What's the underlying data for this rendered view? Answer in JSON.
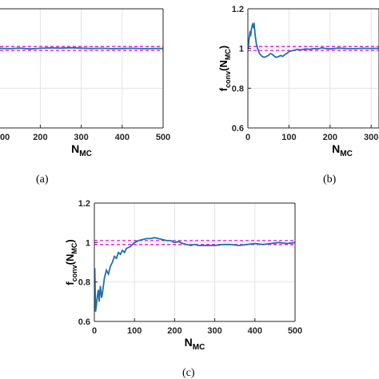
{
  "colors": {
    "series": "#1f6fb2",
    "bound": "#e10de1",
    "grid": "#e3e3e3",
    "axis": "#262626"
  },
  "chart_data": [
    {
      "panel": "(a)",
      "type": "line",
      "xlabel_main": "N",
      "xlabel_sub": "MC",
      "xlim": [
        0,
        500
      ],
      "ylim": [
        0.6,
        1.2
      ],
      "xticks": [
        0,
        200,
        300,
        400,
        500
      ],
      "xtick_labels": [
        "00",
        "200",
        "300",
        "400",
        "500"
      ],
      "yticks": [],
      "grid": true,
      "bounds": [
        0.99,
        1.01
      ],
      "series": [
        {
          "x": [
            0,
            25,
            50,
            75,
            100,
            125,
            150,
            175,
            200,
            225,
            250,
            275,
            300,
            325,
            350,
            375,
            400,
            425,
            450,
            475,
            500
          ],
          "values": [
            1.0,
            0.998,
            1.003,
            0.997,
            1.001,
            0.999,
            1.002,
            0.998,
            1.001,
            1.003,
            1.002,
            1.004,
            1.002,
            1.0,
            1.001,
            0.999,
            1.0,
            1.001,
            0.999,
            1.0,
            1.0
          ]
        }
      ]
    },
    {
      "panel": "(b)",
      "type": "line",
      "xlabel_main": "N",
      "xlabel_sub": "MC",
      "ylabel_main": "f",
      "ylabel_sub": "conv",
      "ylabel_arg_main": "N",
      "ylabel_arg_sub": "MC",
      "xlim": [
        0,
        500
      ],
      "ylim": [
        0.6,
        1.2
      ],
      "xticks": [
        0,
        100,
        200,
        300
      ],
      "xtick_labels": [
        "0",
        "100",
        "200",
        "300"
      ],
      "yticks": [
        0.6,
        0.8,
        1,
        1.2
      ],
      "ytick_labels": [
        "0.6",
        "0.8",
        "1",
        "1.2"
      ],
      "grid": true,
      "bounds": [
        0.99,
        1.01
      ],
      "series": [
        {
          "x": [
            1,
            3,
            5,
            7,
            9,
            11,
            13,
            15,
            18,
            21,
            24,
            27,
            30,
            35,
            40,
            45,
            50,
            55,
            60,
            65,
            70,
            75,
            80,
            85,
            90,
            95,
            100,
            110,
            120,
            130,
            140,
            150,
            160,
            170,
            180,
            190,
            200,
            220,
            240,
            260,
            280,
            300,
            320,
            340
          ],
          "values": [
            1.0,
            1.05,
            1.08,
            1.07,
            1.1,
            1.12,
            1.11,
            1.13,
            1.06,
            1.02,
            1.0,
            0.98,
            0.97,
            0.96,
            0.955,
            0.96,
            0.965,
            0.975,
            0.97,
            0.96,
            0.955,
            0.96,
            0.965,
            0.96,
            0.97,
            0.975,
            0.985,
            0.99,
            0.995,
            0.993,
            0.998,
            0.996,
            1.0,
            0.998,
            1.003,
            1.0,
            0.998,
            1.002,
            1.0,
            0.999,
            1.001,
            1.0,
            1.001,
            1.0
          ]
        }
      ]
    },
    {
      "panel": "(c)",
      "type": "line",
      "xlabel_main": "N",
      "xlabel_sub": "MC",
      "ylabel_main": "f",
      "ylabel_sub": "conv",
      "ylabel_arg_main": "N",
      "ylabel_arg_sub": "MC",
      "xlim": [
        0,
        500
      ],
      "ylim": [
        0.6,
        1.2
      ],
      "xticks": [
        0,
        100,
        200,
        300,
        400,
        500
      ],
      "xtick_labels": [
        "0",
        "100",
        "200",
        "300",
        "400",
        "500"
      ],
      "yticks": [
        0.6,
        0.8,
        1,
        1.2
      ],
      "ytick_labels": [
        "0.6",
        "0.8",
        "1",
        "1.2"
      ],
      "grid": true,
      "bounds": [
        0.99,
        1.01
      ],
      "series": [
        {
          "x": [
            1,
            3,
            5,
            7,
            10,
            12,
            15,
            18,
            20,
            25,
            30,
            35,
            40,
            45,
            50,
            55,
            60,
            65,
            70,
            75,
            80,
            90,
            100,
            110,
            120,
            130,
            140,
            150,
            160,
            170,
            180,
            190,
            200,
            210,
            220,
            230,
            240,
            250,
            260,
            280,
            300,
            320,
            340,
            360,
            380,
            400,
            420,
            440,
            460,
            480,
            500
          ],
          "values": [
            0.87,
            0.65,
            0.68,
            0.72,
            0.76,
            0.7,
            0.78,
            0.72,
            0.74,
            0.82,
            0.86,
            0.84,
            0.88,
            0.9,
            0.93,
            0.92,
            0.95,
            0.94,
            0.96,
            0.95,
            0.97,
            0.98,
            1.0,
            1.01,
            1.015,
            1.02,
            1.02,
            1.025,
            1.02,
            1.015,
            1.01,
            1.01,
            1.0,
            1.005,
            0.995,
            0.99,
            0.985,
            0.99,
            0.985,
            0.985,
            0.985,
            0.99,
            0.99,
            0.985,
            0.99,
            0.995,
            0.99,
            0.995,
            1.0,
            0.995,
            1.0
          ]
        }
      ]
    }
  ],
  "captions": {
    "a": "(a)",
    "b": "(b)",
    "c": "(c)"
  }
}
